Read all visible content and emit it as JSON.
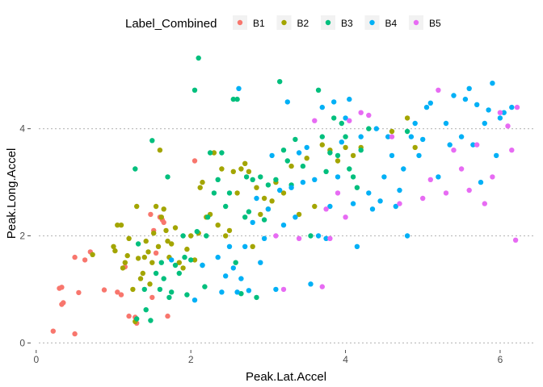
{
  "chart_data": {
    "type": "scatter",
    "title": "",
    "xlabel": "Peak.Lat.Accel",
    "ylabel": "Peak.Long.Accel",
    "xlim": [
      -0.05,
      6.45
    ],
    "ylim": [
      -0.1,
      5.5
    ],
    "x_ticks": [
      0,
      2,
      4,
      6
    ],
    "y_ticks": [
      0,
      2,
      4
    ],
    "x_tick_labels": [
      "0",
      "2",
      "4",
      "6"
    ],
    "y_tick_labels": [
      "0",
      "2",
      "4"
    ],
    "grid": "horizontal major, dotted",
    "legend": {
      "title": "Label_Combined",
      "position": "top"
    },
    "series": [
      {
        "name": "B1",
        "color": "#F8766D",
        "points": [
          [
            0.22,
            0.22
          ],
          [
            0.3,
            1.02
          ],
          [
            0.33,
            1.04
          ],
          [
            0.33,
            0.72
          ],
          [
            0.35,
            0.75
          ],
          [
            0.5,
            0.17
          ],
          [
            0.5,
            1.6
          ],
          [
            0.55,
            0.94
          ],
          [
            0.63,
            1.55
          ],
          [
            0.7,
            1.7
          ],
          [
            0.88,
            0.99
          ],
          [
            1.05,
            0.95
          ],
          [
            1.1,
            0.9
          ],
          [
            1.15,
            1.42
          ],
          [
            1.2,
            0.5
          ],
          [
            1.28,
            0.48
          ],
          [
            1.3,
            0.37
          ],
          [
            1.48,
            2.4
          ],
          [
            1.5,
            0.85
          ],
          [
            1.52,
            2.1
          ],
          [
            1.55,
            1.68
          ],
          [
            1.6,
            2.35
          ],
          [
            1.63,
            2.3
          ],
          [
            1.65,
            2.25
          ],
          [
            1.7,
            0.5
          ],
          [
            2.05,
            3.4
          ]
        ]
      },
      {
        "name": "B2",
        "color": "#A3A500",
        "points": [
          [
            0.73,
            1.65
          ],
          [
            1.0,
            1.8
          ],
          [
            1.02,
            1.72
          ],
          [
            1.05,
            2.2
          ],
          [
            1.1,
            2.2
          ],
          [
            1.12,
            1.4
          ],
          [
            1.15,
            1.5
          ],
          [
            1.18,
            1.63
          ],
          [
            1.2,
            1.95
          ],
          [
            1.25,
            1.0
          ],
          [
            1.28,
            0.4
          ],
          [
            1.3,
            2.55
          ],
          [
            1.32,
            1.58
          ],
          [
            1.35,
            1.2
          ],
          [
            1.38,
            1.3
          ],
          [
            1.4,
            1.6
          ],
          [
            1.42,
            1.9
          ],
          [
            1.45,
            1.7
          ],
          [
            1.47,
            1.1
          ],
          [
            1.5,
            1.5
          ],
          [
            1.52,
            2.05
          ],
          [
            1.55,
            2.55
          ],
          [
            1.58,
            1.8
          ],
          [
            1.6,
            3.6
          ],
          [
            1.62,
            2.35
          ],
          [
            1.65,
            2.5
          ],
          [
            1.68,
            2.1
          ],
          [
            1.7,
            1.9
          ],
          [
            1.72,
            1.6
          ],
          [
            1.75,
            1.85
          ],
          [
            1.8,
            2.15
          ],
          [
            1.85,
            1.5
          ],
          [
            1.9,
            1.4
          ],
          [
            1.95,
            1.75
          ],
          [
            2.0,
            2.0
          ],
          [
            2.05,
            1.55
          ],
          [
            2.1,
            2.05
          ],
          [
            2.12,
            2.9
          ],
          [
            2.15,
            3.0
          ],
          [
            2.2,
            2.35
          ],
          [
            2.25,
            2.4
          ],
          [
            2.3,
            3.55
          ],
          [
            2.35,
            2.2
          ],
          [
            2.4,
            3.25
          ],
          [
            2.45,
            2.0
          ],
          [
            2.5,
            2.1
          ],
          [
            2.55,
            3.2
          ],
          [
            2.6,
            2.8
          ],
          [
            2.65,
            3.25
          ],
          [
            2.7,
            3.35
          ],
          [
            2.75,
            3.2
          ],
          [
            2.8,
            1.8
          ],
          [
            2.85,
            2.9
          ],
          [
            2.9,
            2.4
          ],
          [
            2.95,
            2.7
          ],
          [
            3.0,
            2.5
          ],
          [
            3.05,
            2.65
          ],
          [
            3.1,
            3.0
          ],
          [
            3.2,
            2.8
          ],
          [
            3.3,
            3.3
          ],
          [
            3.4,
            2.4
          ],
          [
            3.5,
            3.45
          ],
          [
            3.6,
            2.55
          ],
          [
            3.7,
            3.7
          ],
          [
            3.8,
            3.6
          ],
          [
            3.9,
            3.4
          ],
          [
            4.0,
            3.65
          ],
          [
            4.1,
            3.5
          ],
          [
            4.2,
            3.65
          ],
          [
            4.6,
            3.95
          ],
          [
            4.8,
            4.2
          ],
          [
            4.9,
            3.65
          ]
        ]
      },
      {
        "name": "B3",
        "color": "#00BF7D",
        "points": [
          [
            1.28,
            3.25
          ],
          [
            1.3,
            0.45
          ],
          [
            1.32,
            1.85
          ],
          [
            1.4,
            1.0
          ],
          [
            1.42,
            0.62
          ],
          [
            1.48,
            0.42
          ],
          [
            1.5,
            3.78
          ],
          [
            1.55,
            1.3
          ],
          [
            1.6,
            1.0
          ],
          [
            1.62,
            1.5
          ],
          [
            1.65,
            1.2
          ],
          [
            1.7,
            3.1
          ],
          [
            1.72,
            0.85
          ],
          [
            1.75,
            0.95
          ],
          [
            1.8,
            1.45
          ],
          [
            1.85,
            1.3
          ],
          [
            1.9,
            2.0
          ],
          [
            1.92,
            1.6
          ],
          [
            1.95,
            0.9
          ],
          [
            2.0,
            1.55
          ],
          [
            2.05,
            4.72
          ],
          [
            2.08,
            2.08
          ],
          [
            2.1,
            5.32
          ],
          [
            2.15,
            1.45
          ],
          [
            2.18,
            1.05
          ],
          [
            2.2,
            2.0
          ],
          [
            2.22,
            2.35
          ],
          [
            2.25,
            3.55
          ],
          [
            2.3,
            2.8
          ],
          [
            2.35,
            3.05
          ],
          [
            2.4,
            3.55
          ],
          [
            2.45,
            2.55
          ],
          [
            2.5,
            2.8
          ],
          [
            2.55,
            4.55
          ],
          [
            2.58,
            1.5
          ],
          [
            2.6,
            4.55
          ],
          [
            2.65,
            0.92
          ],
          [
            2.7,
            2.35
          ],
          [
            2.72,
            3.1
          ],
          [
            2.75,
            2.45
          ],
          [
            2.8,
            3.05
          ],
          [
            2.85,
            0.85
          ],
          [
            2.9,
            3.1
          ],
          [
            2.95,
            2.3
          ],
          [
            3.0,
            2.95
          ],
          [
            3.1,
            3.05
          ],
          [
            3.15,
            4.88
          ],
          [
            3.2,
            3.6
          ],
          [
            3.25,
            3.4
          ],
          [
            3.3,
            2.95
          ],
          [
            3.35,
            3.8
          ],
          [
            3.45,
            3.3
          ],
          [
            3.55,
            2.0
          ],
          [
            3.65,
            4.72
          ],
          [
            3.7,
            3.85
          ],
          [
            3.75,
            3.2
          ],
          [
            3.8,
            3.55
          ],
          [
            3.85,
            4.2
          ],
          [
            3.9,
            3.5
          ],
          [
            3.95,
            4.1
          ],
          [
            4.0,
            3.85
          ],
          [
            4.05,
            3.25
          ],
          [
            4.1,
            3.1
          ],
          [
            4.15,
            2.9
          ],
          [
            4.2,
            3.6
          ],
          [
            4.3,
            4.0
          ],
          [
            4.8,
            3.95
          ]
        ]
      },
      {
        "name": "B4",
        "color": "#00B0F6",
        "points": [
          [
            1.75,
            1.55
          ],
          [
            2.05,
            0.8
          ],
          [
            2.15,
            1.45
          ],
          [
            2.35,
            1.6
          ],
          [
            2.4,
            0.95
          ],
          [
            2.45,
            1.25
          ],
          [
            2.5,
            1.8
          ],
          [
            2.55,
            1.4
          ],
          [
            2.6,
            0.95
          ],
          [
            2.62,
            4.75
          ],
          [
            2.65,
            1.2
          ],
          [
            2.7,
            1.8
          ],
          [
            2.75,
            0.98
          ],
          [
            2.8,
            2.25
          ],
          [
            2.85,
            2.7
          ],
          [
            2.9,
            1.5
          ],
          [
            2.95,
            1.95
          ],
          [
            3.0,
            2.5
          ],
          [
            3.05,
            3.5
          ],
          [
            3.1,
            1.0
          ],
          [
            3.15,
            2.85
          ],
          [
            3.2,
            2.2
          ],
          [
            3.25,
            4.5
          ],
          [
            3.3,
            2.9
          ],
          [
            3.35,
            2.35
          ],
          [
            3.4,
            3.55
          ],
          [
            3.45,
            3.0
          ],
          [
            3.5,
            3.65
          ],
          [
            3.55,
            1.1
          ],
          [
            3.6,
            3.05
          ],
          [
            3.65,
            2.0
          ],
          [
            3.7,
            4.4
          ],
          [
            3.75,
            1.95
          ],
          [
            3.8,
            2.55
          ],
          [
            3.85,
            4.5
          ],
          [
            3.9,
            3.1
          ],
          [
            3.95,
            3.75
          ],
          [
            4.0,
            4.2
          ],
          [
            4.05,
            4.55
          ],
          [
            4.1,
            2.6
          ],
          [
            4.15,
            1.8
          ],
          [
            4.2,
            3.85
          ],
          [
            4.3,
            2.8
          ],
          [
            4.35,
            2.5
          ],
          [
            4.4,
            4.0
          ],
          [
            4.45,
            2.65
          ],
          [
            4.5,
            3.1
          ],
          [
            4.55,
            3.85
          ],
          [
            4.6,
            3.5
          ],
          [
            4.65,
            2.55
          ],
          [
            4.7,
            2.85
          ],
          [
            4.75,
            3.25
          ],
          [
            4.8,
            2.0
          ],
          [
            4.85,
            3.85
          ],
          [
            4.9,
            4.1
          ],
          [
            4.95,
            3.5
          ],
          [
            5.0,
            3.8
          ],
          [
            5.05,
            4.4
          ],
          [
            5.1,
            4.48
          ],
          [
            5.2,
            3.1
          ],
          [
            5.3,
            4.1
          ],
          [
            5.35,
            3.7
          ],
          [
            5.4,
            4.62
          ],
          [
            5.5,
            3.85
          ],
          [
            5.55,
            4.55
          ],
          [
            5.6,
            4.75
          ],
          [
            5.65,
            3.7
          ],
          [
            5.7,
            4.45
          ],
          [
            5.75,
            3.0
          ],
          [
            5.8,
            4.1
          ],
          [
            5.85,
            4.35
          ],
          [
            5.9,
            4.85
          ],
          [
            5.95,
            3.5
          ],
          [
            6.0,
            4.2
          ],
          [
            6.05,
            4.3
          ],
          [
            6.15,
            4.4
          ]
        ]
      },
      {
        "name": "B5",
        "color": "#E76BF3",
        "points": [
          [
            3.1,
            2.0
          ],
          [
            3.2,
            1.0
          ],
          [
            3.4,
            1.95
          ],
          [
            3.6,
            4.15
          ],
          [
            3.7,
            1.05
          ],
          [
            3.75,
            2.5
          ],
          [
            3.8,
            1.95
          ],
          [
            3.9,
            2.8
          ],
          [
            4.0,
            2.35
          ],
          [
            4.05,
            4.15
          ],
          [
            4.2,
            4.3
          ],
          [
            4.3,
            4.25
          ],
          [
            4.6,
            3.85
          ],
          [
            4.7,
            2.6
          ],
          [
            5.0,
            2.7
          ],
          [
            5.1,
            3.05
          ],
          [
            5.2,
            4.72
          ],
          [
            5.3,
            2.8
          ],
          [
            5.4,
            3.6
          ],
          [
            5.5,
            3.25
          ],
          [
            5.6,
            2.85
          ],
          [
            5.7,
            3.7
          ],
          [
            5.8,
            2.6
          ],
          [
            5.9,
            3.1
          ],
          [
            6.0,
            4.3
          ],
          [
            6.1,
            4.05
          ],
          [
            6.15,
            3.6
          ],
          [
            6.2,
            1.92
          ],
          [
            6.22,
            4.4
          ]
        ]
      }
    ]
  }
}
